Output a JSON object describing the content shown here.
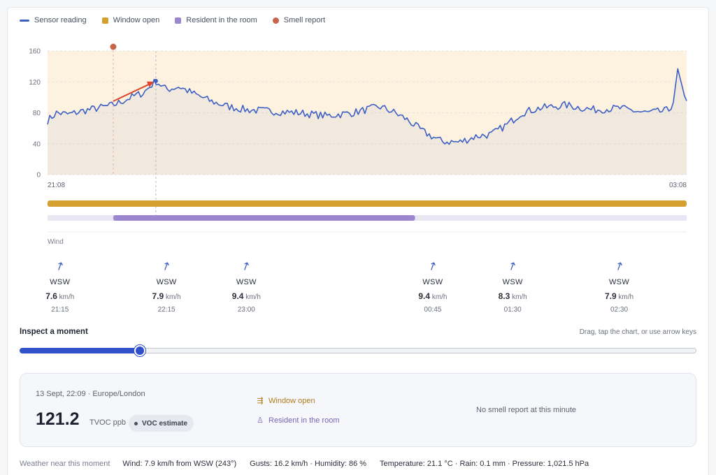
{
  "legend": [
    {
      "label": "Sensor reading",
      "color": "#3d5fc6",
      "shape": "line"
    },
    {
      "label": "Window open",
      "color": "#d4a02f",
      "shape": "square"
    },
    {
      "label": "Resident in the room",
      "color": "#9b86cf",
      "shape": "square"
    },
    {
      "label": "Smell report",
      "color": "#c8644a",
      "shape": "dot"
    }
  ],
  "chart_data": {
    "type": "line",
    "series": [
      {
        "name": "Sensor reading",
        "color": "#3d5fc6"
      }
    ],
    "ylim": [
      0,
      160
    ],
    "yticks": [
      "0",
      "40",
      "80",
      "120",
      "160"
    ],
    "x_start_label": "21:08",
    "x_end_label": "03:08",
    "x_range": [
      "21:08",
      "03:08"
    ],
    "anchors": [
      [
        "21:08",
        70
      ],
      [
        "21:13",
        80
      ],
      [
        "21:20",
        78
      ],
      [
        "21:27",
        82
      ],
      [
        "21:36",
        86
      ],
      [
        "21:45",
        90
      ],
      [
        "21:55",
        100
      ],
      [
        "22:02",
        106
      ],
      [
        "22:09",
        121.2
      ],
      [
        "22:15",
        110
      ],
      [
        "22:22",
        114
      ],
      [
        "22:30",
        105
      ],
      [
        "22:40",
        95
      ],
      [
        "22:50",
        88
      ],
      [
        "23:00",
        84
      ],
      [
        "23:15",
        82
      ],
      [
        "23:30",
        80
      ],
      [
        "23:45",
        76
      ],
      [
        "24:00",
        80
      ],
      [
        "24:15",
        88
      ],
      [
        "24:22",
        82
      ],
      [
        "24:30",
        72
      ],
      [
        "24:40",
        55
      ],
      [
        "24:50",
        43
      ],
      [
        "25:00",
        42
      ],
      [
        "25:10",
        50
      ],
      [
        "25:18",
        52
      ],
      [
        "25:27",
        65
      ],
      [
        "25:35",
        80
      ],
      [
        "25:45",
        86
      ],
      [
        "26:00",
        90
      ],
      [
        "26:15",
        84
      ],
      [
        "26:30",
        86
      ],
      [
        "26:45",
        80
      ],
      [
        "26:55",
        82
      ],
      [
        "27:00",
        85
      ],
      [
        "27:03",
        137
      ],
      [
        "27:07",
        100
      ],
      [
        "27:20",
        96
      ],
      [
        "27:30",
        92
      ],
      [
        "27:45",
        82
      ],
      [
        "28:00",
        80
      ],
      [
        "28:08",
        72
      ]
    ],
    "noise_amplitude": 5,
    "window_open": {
      "start": "21:08",
      "end": "03:08",
      "color": "#d4a02f"
    },
    "resident_in_room": {
      "start": "21:45",
      "end": "00:35",
      "color": "#9b86cf"
    },
    "smell_report": {
      "time": "21:45",
      "color": "#c8644a"
    },
    "highlight": {
      "time": "22:09",
      "value": 121.2
    },
    "trend_arrow": {
      "from_time": "21:45",
      "from_value": 95,
      "to_time": "22:09",
      "to_value": 121.2,
      "color": "#e0452a"
    },
    "background_band_color": "#fcf2df",
    "grid": true
  },
  "wind": {
    "title": "Wind",
    "unit": "km/h",
    "arrow_icon": "↗",
    "points": [
      {
        "time": "21:15",
        "dir": "WSW",
        "speed": "7.6"
      },
      {
        "time": "22:15",
        "dir": "WSW",
        "speed": "7.9"
      },
      {
        "time": "23:00",
        "dir": "WSW",
        "speed": "9.4"
      },
      {
        "time": "00:45",
        "dir": "WSW",
        "speed": "9.4"
      },
      {
        "time": "01:30",
        "dir": "WSW",
        "speed": "8.3"
      },
      {
        "time": "02:30",
        "dir": "WSW",
        "speed": "7.9"
      }
    ]
  },
  "inspect": {
    "title": "Inspect a moment",
    "hint": "Drag, tap the chart, or use arrow keys",
    "position": 0.1775
  },
  "detail": {
    "timestamp": "13 Sept, 22:09 · Europe/London",
    "value": "121.2",
    "unit": "TVOC ppb",
    "badge": "VOC estimate",
    "statuses": [
      {
        "label": "Window open",
        "icon": "window-icon",
        "glyph": "⇶",
        "color": "#b07d1a"
      },
      {
        "label": "Resident in the room",
        "icon": "person-icon",
        "glyph": "♙",
        "color": "#7a65b5"
      }
    ],
    "smell_text": "No smell report at this minute"
  },
  "weather": {
    "label": "Weather near this moment",
    "items": [
      "Wind: 7.9 km/h from WSW (243°)",
      "Gusts: 16.2 km/h · Humidity: 86 %",
      "Temperature: 21.1 °C · Rain: 0.1 mm · Pressure: 1,021.5 hPa"
    ]
  }
}
